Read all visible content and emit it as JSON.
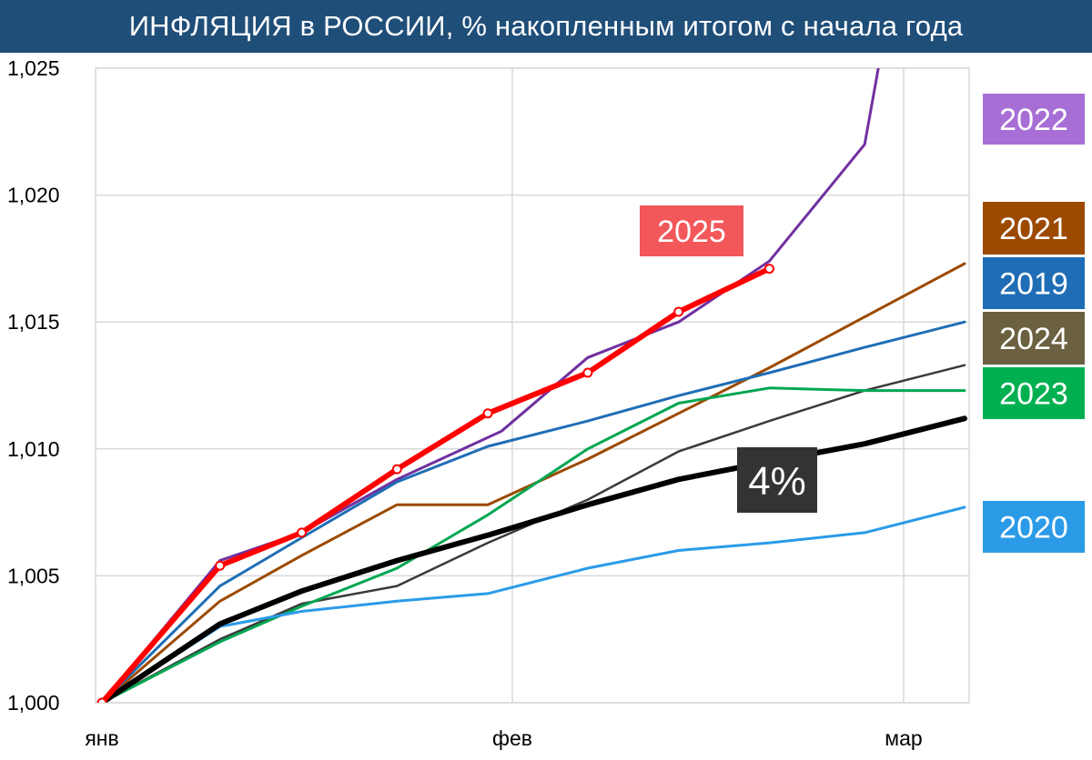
{
  "title": "ИНФЛЯЦИЯ в РОССИИ, % накопленным итогом с начала года",
  "chart_data": {
    "type": "line",
    "title": "ИНФЛЯЦИЯ в РОССИИ, % накопленным итогом с начала года",
    "xlabel": "",
    "ylabel": "",
    "ylim": [
      1.0,
      1.025
    ],
    "x_tick_labels": [
      "янв",
      "фев",
      "мар"
    ],
    "y_tick_labels": [
      "1,000",
      "1,005",
      "1,010",
      "1,015",
      "1,020",
      "1,025"
    ],
    "grid": "on",
    "series": [
      {
        "name": "2022",
        "color": "#7030a0",
        "width": 3,
        "points": [
          [
            0.0,
            1.0
          ],
          [
            0.13,
            1.0056
          ],
          [
            0.22,
            1.0067
          ],
          [
            0.325,
            1.0088
          ],
          [
            0.44,
            1.0107
          ],
          [
            0.535,
            1.0136
          ],
          [
            0.635,
            1.015
          ],
          [
            0.735,
            1.0174
          ],
          [
            0.84,
            1.022
          ],
          [
            0.855,
            1.025
          ]
        ]
      },
      {
        "name": "2021",
        "color": "#9c4a00",
        "width": 3,
        "points": [
          [
            0.0,
            1.0
          ],
          [
            0.13,
            1.004
          ],
          [
            0.22,
            1.0058
          ],
          [
            0.325,
            1.0078
          ],
          [
            0.425,
            1.0078
          ],
          [
            0.535,
            1.0096
          ],
          [
            0.635,
            1.0114
          ],
          [
            0.735,
            1.0132
          ],
          [
            0.84,
            1.0152
          ],
          [
            0.95,
            1.0173
          ]
        ]
      },
      {
        "name": "2019",
        "color": "#1f6eb5",
        "width": 3,
        "points": [
          [
            0.0,
            1.0
          ],
          [
            0.13,
            1.0046
          ],
          [
            0.22,
            1.0065
          ],
          [
            0.325,
            1.0087
          ],
          [
            0.425,
            1.0101
          ],
          [
            0.535,
            1.0111
          ],
          [
            0.635,
            1.0121
          ],
          [
            0.735,
            1.013
          ],
          [
            0.84,
            1.014
          ],
          [
            0.95,
            1.015
          ]
        ]
      },
      {
        "name": "2024",
        "color": "#3a3a3a",
        "width": 2.5,
        "points": [
          [
            0.0,
            1.0
          ],
          [
            0.13,
            1.0025
          ],
          [
            0.22,
            1.0039
          ],
          [
            0.325,
            1.0046
          ],
          [
            0.425,
            1.0063
          ],
          [
            0.535,
            1.008
          ],
          [
            0.635,
            1.0099
          ],
          [
            0.735,
            1.0111
          ],
          [
            0.84,
            1.0123
          ],
          [
            0.95,
            1.0133
          ]
        ]
      },
      {
        "name": "2023",
        "color": "#00a651",
        "width": 3,
        "points": [
          [
            0.0,
            1.0
          ],
          [
            0.13,
            1.0024
          ],
          [
            0.22,
            1.0038
          ],
          [
            0.325,
            1.0053
          ],
          [
            0.425,
            1.0074
          ],
          [
            0.535,
            1.01
          ],
          [
            0.635,
            1.0118
          ],
          [
            0.735,
            1.0124
          ],
          [
            0.84,
            1.0123
          ],
          [
            0.95,
            1.0123
          ]
        ]
      },
      {
        "name": "2020",
        "color": "#2b9be8",
        "width": 3,
        "points": [
          [
            0.0,
            1.0
          ],
          [
            0.13,
            1.003
          ],
          [
            0.22,
            1.0036
          ],
          [
            0.325,
            1.004
          ],
          [
            0.425,
            1.0043
          ],
          [
            0.535,
            1.0053
          ],
          [
            0.635,
            1.006
          ],
          [
            0.735,
            1.0063
          ],
          [
            0.84,
            1.0067
          ],
          [
            0.95,
            1.0077
          ]
        ]
      },
      {
        "name": "4%",
        "color": "#000000",
        "width": 6,
        "points": [
          [
            0.0,
            1.0
          ],
          [
            0.13,
            1.0031
          ],
          [
            0.22,
            1.0044
          ],
          [
            0.325,
            1.0056
          ],
          [
            0.425,
            1.0066
          ],
          [
            0.535,
            1.0078
          ],
          [
            0.635,
            1.0088
          ],
          [
            0.735,
            1.0095
          ],
          [
            0.84,
            1.0102
          ],
          [
            0.95,
            1.0112
          ]
        ]
      },
      {
        "name": "2025",
        "color": "#ff0000",
        "width": 6,
        "markers": true,
        "points": [
          [
            0.0,
            1.0
          ],
          [
            0.13,
            1.0054
          ],
          [
            0.22,
            1.0067
          ],
          [
            0.325,
            1.0092
          ],
          [
            0.425,
            1.0114
          ],
          [
            0.535,
            1.013
          ],
          [
            0.635,
            1.0154
          ],
          [
            0.735,
            1.0171
          ]
        ]
      }
    ],
    "legend": [
      {
        "label": "2022",
        "bg": "#a76fd6"
      },
      {
        "label": "2021",
        "bg": "#9c4a00"
      },
      {
        "label": "2019",
        "bg": "#1f6eb5"
      },
      {
        "label": "2024",
        "bg": "#6b6040"
      },
      {
        "label": "2023",
        "bg": "#00b050"
      },
      {
        "label": "2020",
        "bg": "#2b9be8"
      }
    ],
    "annotations": [
      {
        "text": "2025",
        "bg": "#f2575a",
        "fg": "#ffffff"
      },
      {
        "text": "4%",
        "bg": "#333333",
        "fg": "#ffffff"
      }
    ]
  }
}
